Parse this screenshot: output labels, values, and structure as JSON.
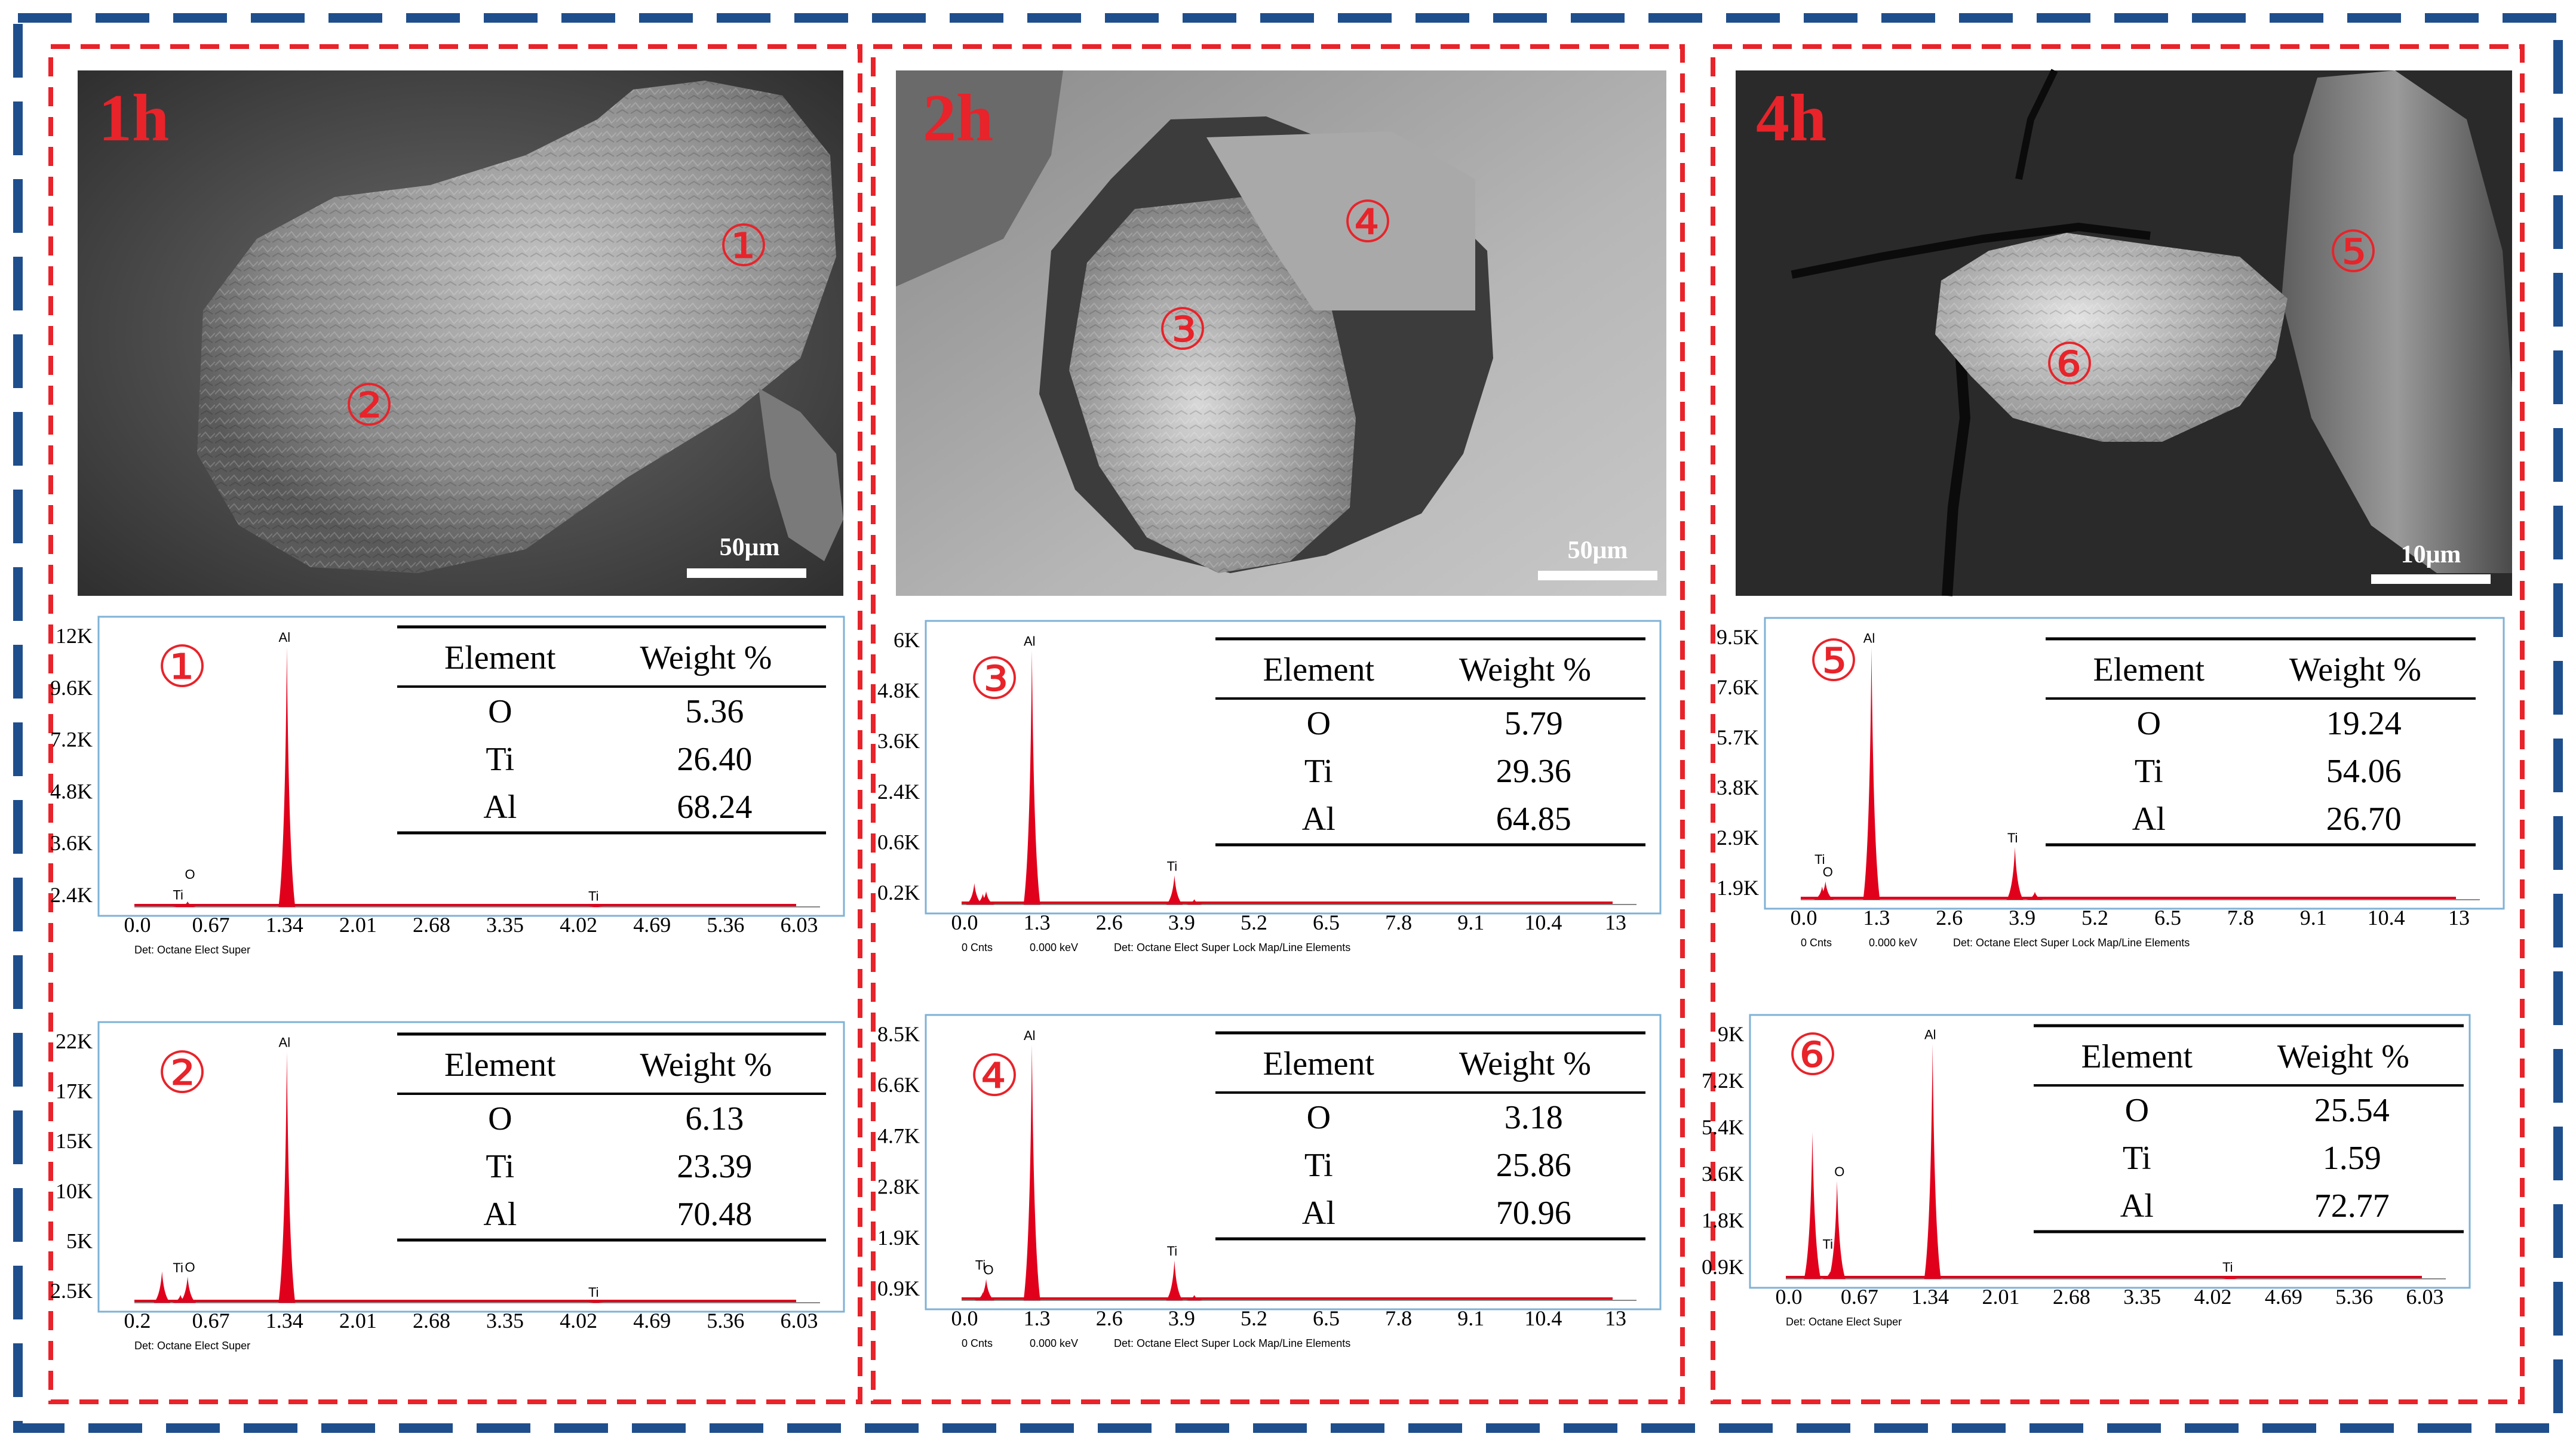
{
  "colors": {
    "outer_border_a": "#1f4e8c",
    "outer_border_b": "#ffffff",
    "panel_border": "#e8232a",
    "sem_label": "#e8232a",
    "marker": "#e8232a",
    "spectrum_fill": "#e0001b",
    "spectrum_frame": "#7fb2d6",
    "table_rule": "#000000"
  },
  "panels": [
    {
      "time_label": "1h",
      "scale_bar": "50μm",
      "sem_markers": [
        "①",
        "②"
      ],
      "spectra": [
        {
          "marker": "①",
          "y_ticks": [
            "12K",
            "9.6K",
            "7.2K",
            "4.8K",
            "3.6K",
            "2.4K"
          ],
          "x_ticks": [
            "0.0",
            "0.67",
            "1.34",
            "2.01",
            "2.68",
            "3.35",
            "4.02",
            "4.69",
            "5.36",
            "6.03"
          ],
          "footer": [
            "Det: Octane Elect Super"
          ],
          "peak_labels": [
            {
              "text": "Al",
              "energy": 1.49
            },
            {
              "text": "Ti",
              "energy": 0.45
            },
            {
              "text": "O",
              "energy": 0.52
            },
            {
              "text": "Ti",
              "energy": 4.51
            }
          ],
          "peaks": [
            {
              "energy": 1.49,
              "relative_height": 0.96
            },
            {
              "energy": 0.45,
              "relative_height": 0.01
            },
            {
              "energy": 0.52,
              "relative_height": 0.02
            },
            {
              "energy": 4.51,
              "relative_height": 0.005
            }
          ],
          "x_max": 6.7,
          "table": {
            "headers": [
              "Element",
              "Weight %"
            ],
            "rows": [
              [
                "O",
                "5.36"
              ],
              [
                "Ti",
                "26.40"
              ],
              [
                "Al",
                "68.24"
              ]
            ]
          }
        },
        {
          "marker": "②",
          "y_ticks": [
            "22K",
            "17K",
            "15K",
            "10K",
            "5K",
            "2.5K"
          ],
          "x_ticks": [
            "0.2",
            "0.67",
            "1.34",
            "2.01",
            "2.68",
            "3.35",
            "4.02",
            "4.69",
            "5.36",
            "6.03"
          ],
          "footer": [
            "Det: Octane Elect Super"
          ],
          "peak_labels": [
            {
              "text": "Al",
              "energy": 1.49
            },
            {
              "text": "O",
              "energy": 0.52
            },
            {
              "text": "Ti",
              "energy": 0.45
            },
            {
              "text": "Ti",
              "energy": 4.51
            }
          ],
          "peaks": [
            {
              "energy": 1.49,
              "relative_height": 0.96
            },
            {
              "energy": 0.27,
              "relative_height": 0.12
            },
            {
              "energy": 0.52,
              "relative_height": 0.1
            },
            {
              "energy": 0.45,
              "relative_height": 0.03
            },
            {
              "energy": 4.51,
              "relative_height": 0.005
            }
          ],
          "x_max": 6.7,
          "table": {
            "headers": [
              "Element",
              "Weight %"
            ],
            "rows": [
              [
                "O",
                "6.13"
              ],
              [
                "Ti",
                "23.39"
              ],
              [
                "Al",
                "70.48"
              ]
            ]
          }
        }
      ]
    },
    {
      "time_label": "2h",
      "scale_bar": "50μm",
      "sem_markers": [
        "④",
        "③"
      ],
      "spectra": [
        {
          "marker": "③",
          "y_ticks": [
            "6K",
            "4.8K",
            "3.6K",
            "2.4K",
            "0.6K",
            "0.2K"
          ],
          "x_ticks": [
            "0.0",
            "1.3",
            "2.6",
            "3.9",
            "5.2",
            "6.5",
            "7.8",
            "9.1",
            "10.4",
            "13"
          ],
          "footer": [
            "0 Cnts",
            "0.000 keV",
            "Det: Octane Elect Super Lock Map/Line Elements"
          ],
          "peak_labels": [
            {
              "text": "Al",
              "energy": 1.49
            },
            {
              "text": "Ti",
              "energy": 4.51
            }
          ],
          "peaks": [
            {
              "energy": 1.49,
              "relative_height": 0.96
            },
            {
              "energy": 0.27,
              "relative_height": 0.08
            },
            {
              "energy": 0.52,
              "relative_height": 0.05
            },
            {
              "energy": 0.45,
              "relative_height": 0.04
            },
            {
              "energy": 4.51,
              "relative_height": 0.11
            },
            {
              "energy": 4.93,
              "relative_height": 0.02
            }
          ],
          "x_max": 14.3,
          "table": {
            "headers": [
              "Element",
              "Weight %"
            ],
            "rows": [
              [
                "O",
                "5.79"
              ],
              [
                "Ti",
                "29.36"
              ],
              [
                "Al",
                "64.85"
              ]
            ]
          }
        },
        {
          "marker": "④",
          "y_ticks": [
            "8.5K",
            "6.6K",
            "4.7K",
            "2.8K",
            "1.9K",
            "0.9K"
          ],
          "x_ticks": [
            "0.0",
            "1.3",
            "2.6",
            "3.9",
            "5.2",
            "6.5",
            "7.8",
            "9.1",
            "10.4",
            "13"
          ],
          "footer": [
            "0 Cnts",
            "0.000 keV",
            "Det: Octane Elect Super Lock Map/Line Elements"
          ],
          "peak_labels": [
            {
              "text": "Al",
              "energy": 1.49
            },
            {
              "text": "O",
              "energy": 0.52
            },
            {
              "text": "Ti",
              "energy": 0.45
            },
            {
              "text": "Ti",
              "energy": 4.51
            }
          ],
          "peaks": [
            {
              "energy": 1.49,
              "relative_height": 0.96
            },
            {
              "energy": 0.52,
              "relative_height": 0.08
            },
            {
              "energy": 0.45,
              "relative_height": 0.03
            },
            {
              "energy": 4.51,
              "relative_height": 0.15
            },
            {
              "energy": 4.93,
              "relative_height": 0.02
            }
          ],
          "x_max": 14.3,
          "table": {
            "headers": [
              "Element",
              "Weight %"
            ],
            "rows": [
              [
                "O",
                "3.18"
              ],
              [
                "Ti",
                "25.86"
              ],
              [
                "Al",
                "70.96"
              ]
            ]
          }
        }
      ]
    },
    {
      "time_label": "4h",
      "scale_bar": "10μm",
      "sem_markers": [
        "⑤",
        "⑥"
      ],
      "spectra": [
        {
          "marker": "⑤",
          "y_ticks": [
            "9.5K",
            "7.6K",
            "5.7K",
            "3.8K",
            "2.9K",
            "1.9K"
          ],
          "x_ticks": [
            "0.0",
            "1.3",
            "2.6",
            "3.9",
            "5.2",
            "6.5",
            "7.8",
            "9.1",
            "10.4",
            "13"
          ],
          "footer": [
            "0 Cnts",
            "0.000 keV",
            "Det: Octane Elect Super Lock Map/Line Elements"
          ],
          "peak_labels": [
            {
              "text": "Al",
              "energy": 1.49
            },
            {
              "text": "O",
              "energy": 0.52
            },
            {
              "text": "Ti",
              "energy": 0.45
            },
            {
              "text": "Ti",
              "energy": 4.51
            }
          ],
          "peaks": [
            {
              "energy": 1.49,
              "relative_height": 0.96
            },
            {
              "energy": 0.52,
              "relative_height": 0.07
            },
            {
              "energy": 0.45,
              "relative_height": 0.05
            },
            {
              "energy": 4.51,
              "relative_height": 0.2
            },
            {
              "energy": 4.93,
              "relative_height": 0.03
            }
          ],
          "x_max": 14.3,
          "table": {
            "headers": [
              "Element",
              "Weight %"
            ],
            "rows": [
              [
                "O",
                "19.24"
              ],
              [
                "Ti",
                "54.06"
              ],
              [
                "Al",
                "26.70"
              ]
            ]
          }
        },
        {
          "marker": "⑥",
          "y_ticks": [
            "9K",
            "7.2K",
            "5.4K",
            "3.6K",
            "1.8K",
            "0.9K"
          ],
          "x_ticks": [
            "0.0",
            "0.67",
            "1.34",
            "2.01",
            "2.68",
            "3.35",
            "4.02",
            "4.69",
            "5.36",
            "6.03"
          ],
          "footer": [
            "Det: Octane Elect Super"
          ],
          "peak_labels": [
            {
              "text": "Al",
              "energy": 1.49
            },
            {
              "text": "O",
              "energy": 0.52
            },
            {
              "text": "Ti",
              "energy": 0.45
            },
            {
              "text": "Ti",
              "energy": 4.51
            }
          ],
          "peaks": [
            {
              "energy": 1.49,
              "relative_height": 0.96
            },
            {
              "energy": 0.27,
              "relative_height": 0.6
            },
            {
              "energy": 0.52,
              "relative_height": 0.4
            },
            {
              "energy": 0.45,
              "relative_height": 0.03
            },
            {
              "energy": 4.51,
              "relative_height": 0.01
            }
          ],
          "x_max": 6.7,
          "table": {
            "headers": [
              "Element",
              "Weight %"
            ],
            "rows": [
              [
                "O",
                "25.54"
              ],
              [
                "Ti",
                "1.59"
              ],
              [
                "Al",
                "72.77"
              ]
            ]
          }
        }
      ]
    }
  ]
}
